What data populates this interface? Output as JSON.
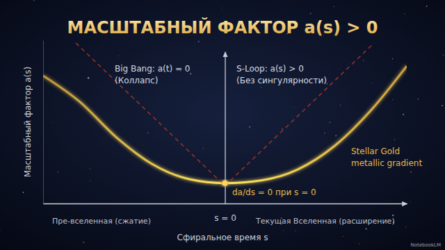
{
  "chart_data": {
    "type": "line",
    "title": "МАСШТАБНЫЙ ФАКТОР a(s) > 0",
    "x_label": "Сфиральное время s",
    "y_label": "Масштабный фактор a(s)",
    "xlim": [
      -1,
      1
    ],
    "ylim": [
      0,
      1.2
    ],
    "xticks": [
      {
        "value": 0,
        "label": "s = 0"
      }
    ],
    "yticks": [],
    "tick_labels": "x",
    "grid": false,
    "series": [
      {
        "type": "line",
        "color": "#e8b84a",
        "line_style": "solid",
        "x": [
          -1,
          -0.8,
          -0.6,
          -0.4,
          -0.2,
          0,
          0.2,
          0.4,
          0.6,
          0.8,
          1
        ],
        "values": [
          0.94,
          0.75,
          0.49,
          0.29,
          0.18,
          0.15,
          0.17,
          0.25,
          0.42,
          0.68,
          1.01
        ]
      },
      {
        "type": "line",
        "color": "#c0392b",
        "line_style": "dashed",
        "x": [
          -0.82,
          0,
          0.82
        ],
        "values": [
          1.18,
          0.13,
          1.18
        ]
      },
      {
        "type": "scatter",
        "color": "#ffd75e",
        "marker": "circle",
        "x": [
          0
        ],
        "values": [
          0.15
        ]
      }
    ],
    "annotations": [
      "Big Bang: a(t) = 0",
      "(Коллапс)",
      "S-Loop: a(s) > 0",
      "(Без сингулярности)",
      "Stellar Gold",
      "metallic gradient",
      "da/ds = 0 при s = 0",
      "Пре-вселенная (сжатие)",
      "Текущая Вселенная (расширение)",
      "NotebookLM"
    ]
  }
}
